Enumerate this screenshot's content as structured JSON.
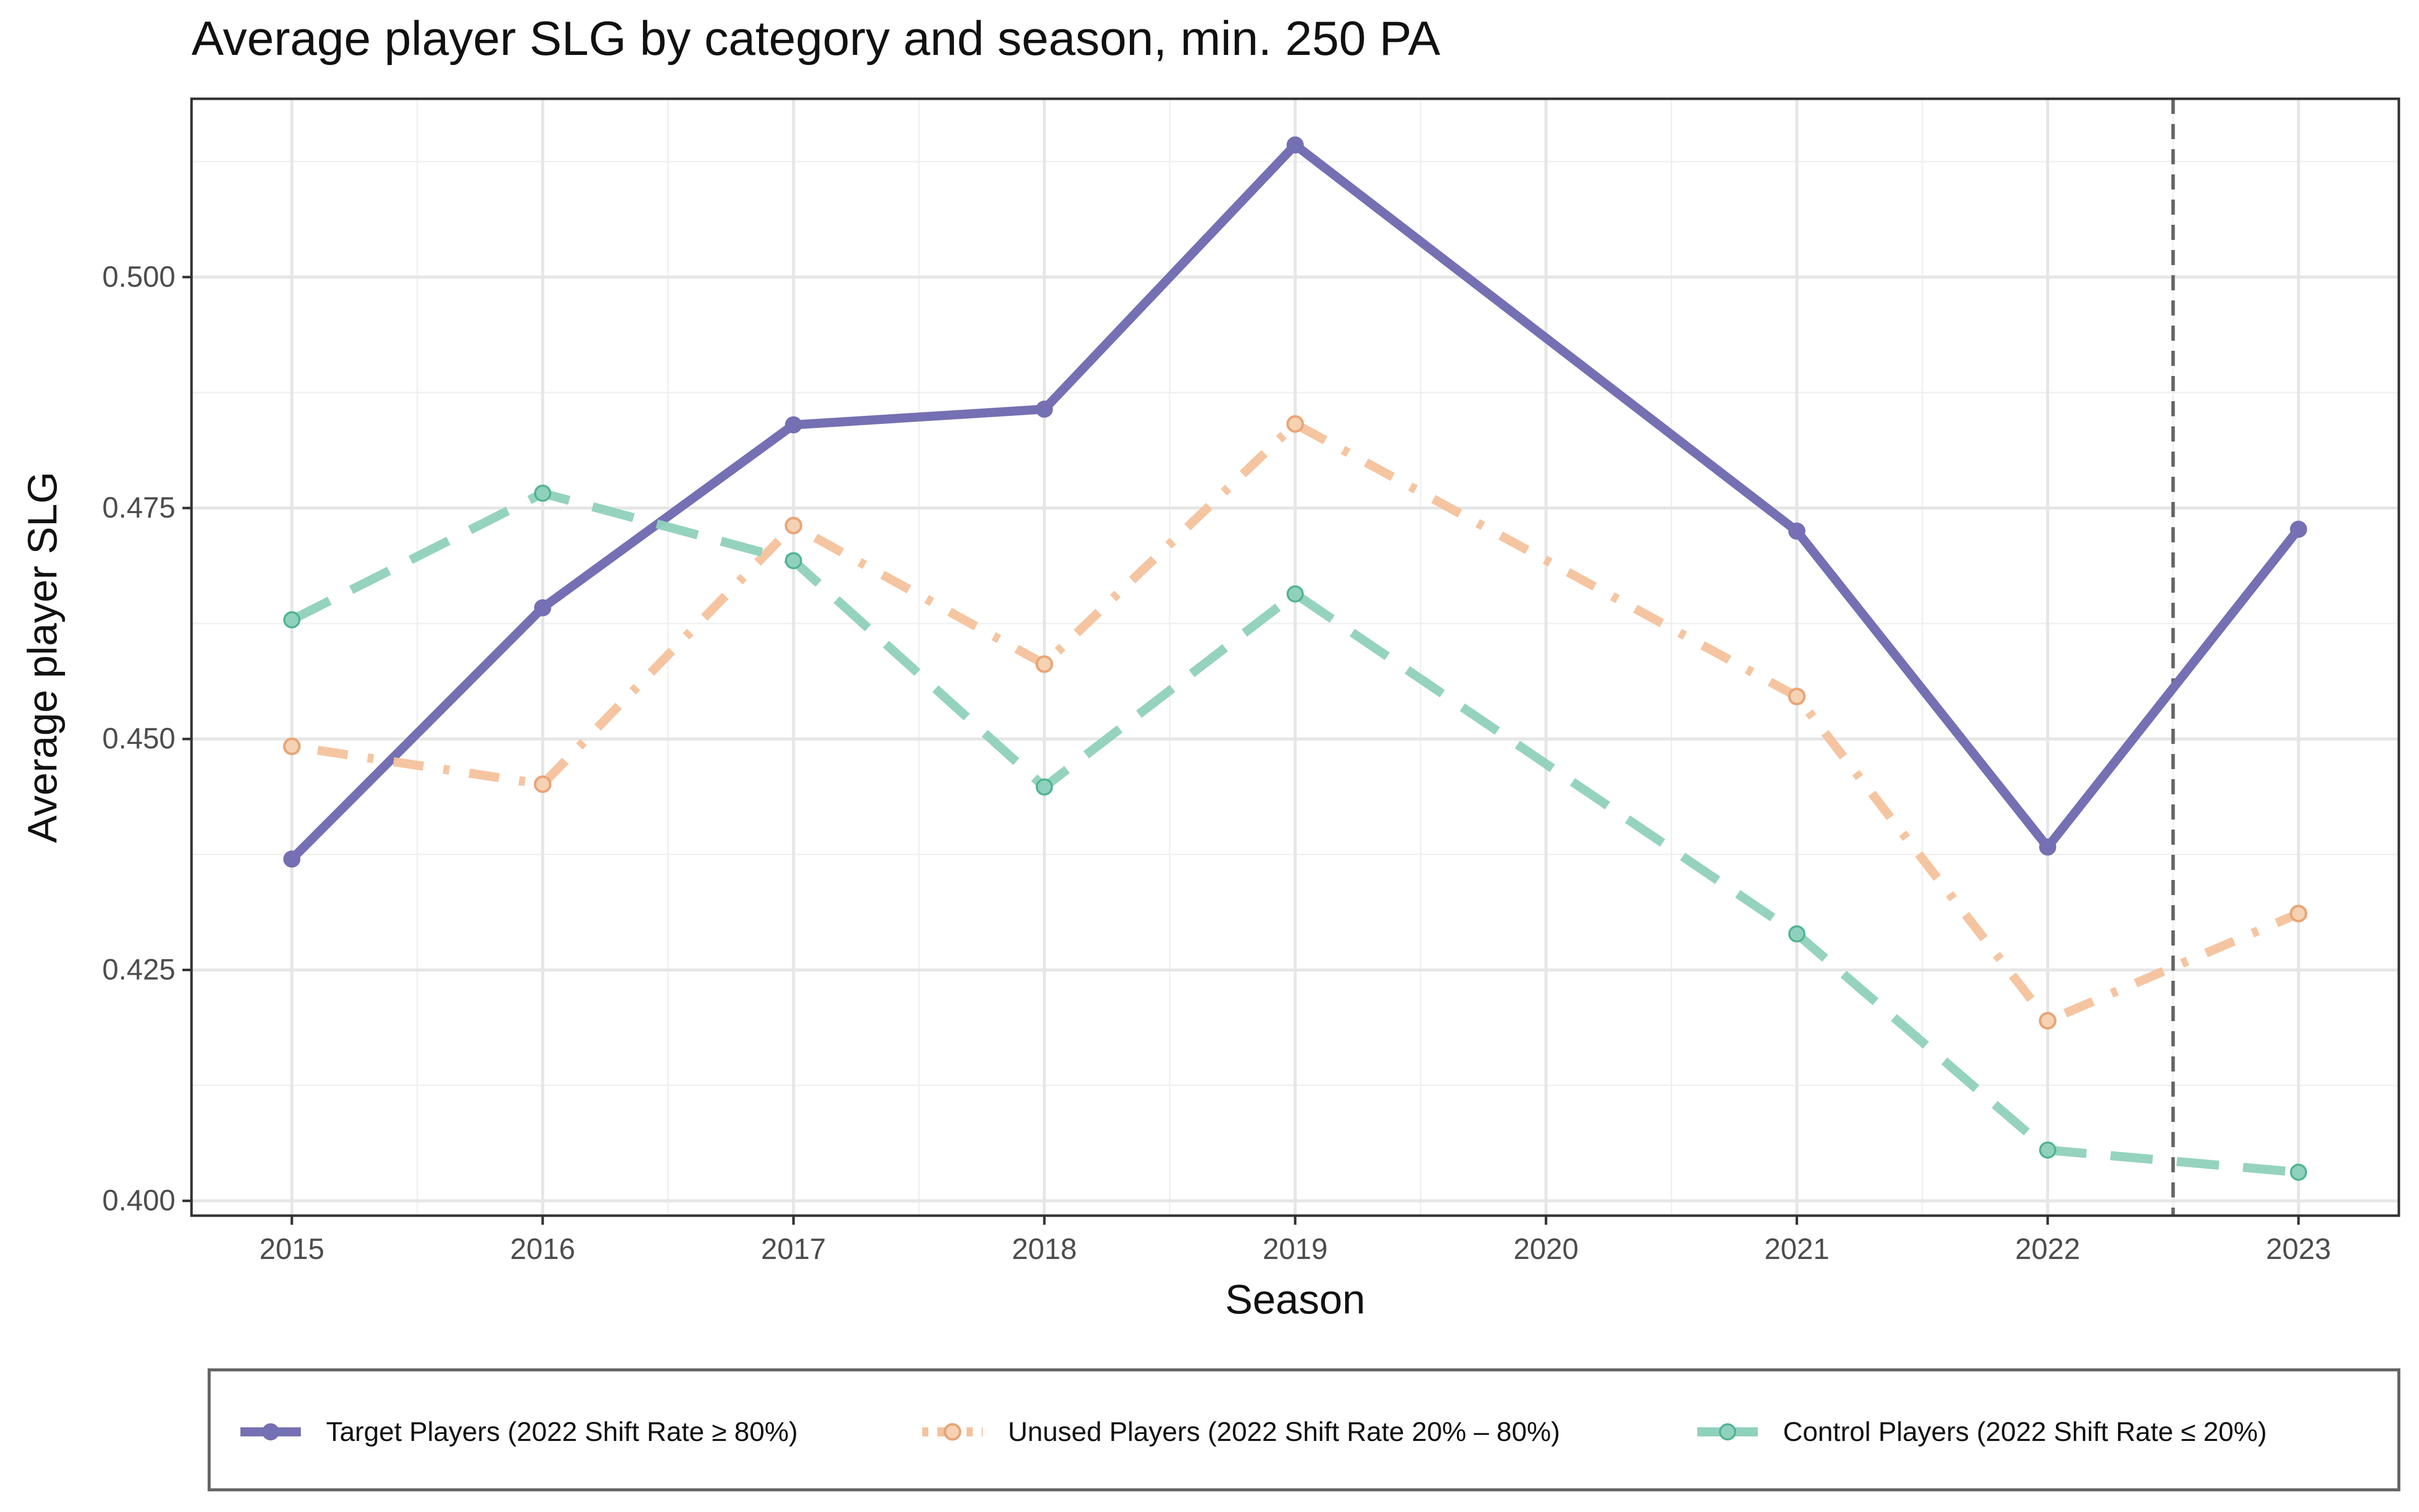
{
  "chart_data": {
    "type": "line",
    "title": "Average player SLG by category and season, min. 250 PA",
    "xlabel": "Season",
    "ylabel": "Average player SLG",
    "x": [
      2015,
      2016,
      2017,
      2018,
      2019,
      2020,
      2021,
      2022,
      2023
    ],
    "x_tick_labels": [
      "2015",
      "2016",
      "2017",
      "2018",
      "2019",
      "2020",
      "2021",
      "2022",
      "2023"
    ],
    "y_ticks": [
      0.4,
      0.425,
      0.45,
      0.475,
      0.5
    ],
    "y_tick_labels": [
      "0.400",
      "0.425",
      "0.450",
      "0.475",
      "0.500"
    ],
    "xlim": [
      2014.6,
      2023.4
    ],
    "ylim": [
      0.3984,
      0.5193
    ],
    "grid": true,
    "legend_position": "bottom",
    "reference_line": {
      "orientation": "vertical",
      "x": 2022.5,
      "style": "dashed",
      "color": "#666666"
    },
    "series": [
      {
        "name": "Target Players (2022 Shift Rate ≥ 80%)",
        "color": "#7570b3",
        "style": "solid",
        "marker": "filled",
        "x": [
          2015,
          2016,
          2017,
          2018,
          2019,
          2021,
          2022,
          2023
        ],
        "values": [
          0.437,
          0.4642,
          0.484,
          0.4857,
          0.5143,
          0.4725,
          0.4383,
          0.4727
        ]
      },
      {
        "name": "Unused Players (2022 Shift Rate 20% – 80%)",
        "color": "#f4c29c",
        "style": "dotdash",
        "marker": "open",
        "x": [
          2015,
          2016,
          2017,
          2018,
          2019,
          2021,
          2022,
          2023
        ],
        "values": [
          0.4492,
          0.4451,
          0.4731,
          0.4581,
          0.4841,
          0.4546,
          0.4195,
          0.4311
        ]
      },
      {
        "name": "Control Players (2022 Shift Rate ≤ 20%)",
        "color": "#8fd1bc",
        "style": "longdash",
        "marker": "filled",
        "x": [
          2015,
          2016,
          2017,
          2018,
          2019,
          2021,
          2022,
          2023
        ],
        "values": [
          0.4629,
          0.4766,
          0.4693,
          0.4448,
          0.4657,
          0.4289,
          0.4055,
          0.4031
        ]
      }
    ]
  }
}
